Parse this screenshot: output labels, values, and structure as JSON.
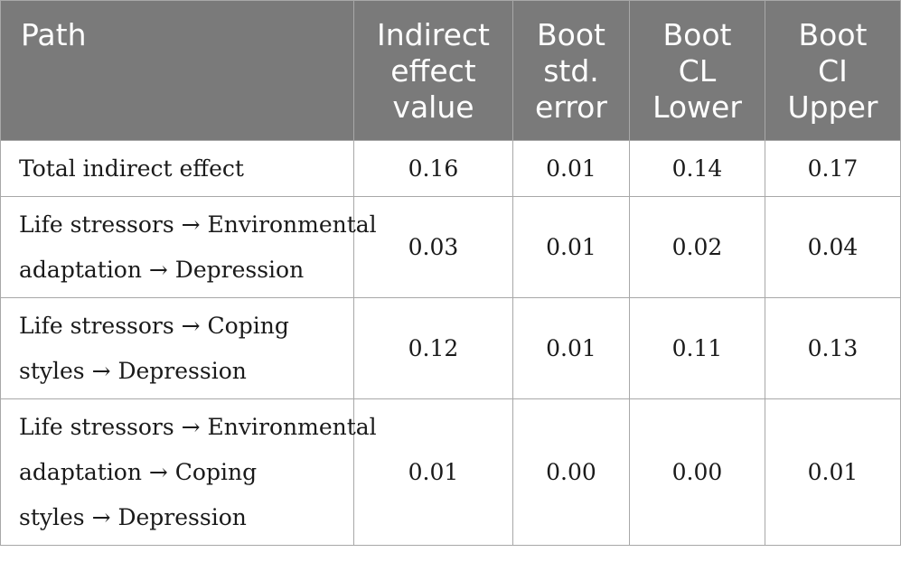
{
  "table": {
    "headers": [
      [
        "Path"
      ],
      [
        "Indirect",
        "effect",
        "value"
      ],
      [
        "Boot",
        "std.",
        "error"
      ],
      [
        "Boot",
        "CL",
        "Lower"
      ],
      [
        "Boot",
        "CI",
        "Upper"
      ]
    ],
    "rows": [
      {
        "path": [
          "Total indirect effect"
        ],
        "indirect_effect_value": "0.16",
        "boot_std_error": "0.01",
        "boot_cl_lower": "0.14",
        "boot_ci_upper": "0.17"
      },
      {
        "path": [
          "Life stressors → Environmental",
          "adaptation → Depression"
        ],
        "indirect_effect_value": "0.03",
        "boot_std_error": "0.01",
        "boot_cl_lower": "0.02",
        "boot_ci_upper": "0.04"
      },
      {
        "path": [
          "Life stressors → Coping",
          "styles → Depression"
        ],
        "indirect_effect_value": "0.12",
        "boot_std_error": "0.01",
        "boot_cl_lower": "0.11",
        "boot_ci_upper": "0.13"
      },
      {
        "path": [
          "Life stressors → Environmental",
          "adaptation → Coping",
          "styles → Depression"
        ],
        "indirect_effect_value": "0.01",
        "boot_std_error": "0.00",
        "boot_cl_lower": "0.00",
        "boot_ci_upper": "0.01"
      }
    ]
  }
}
